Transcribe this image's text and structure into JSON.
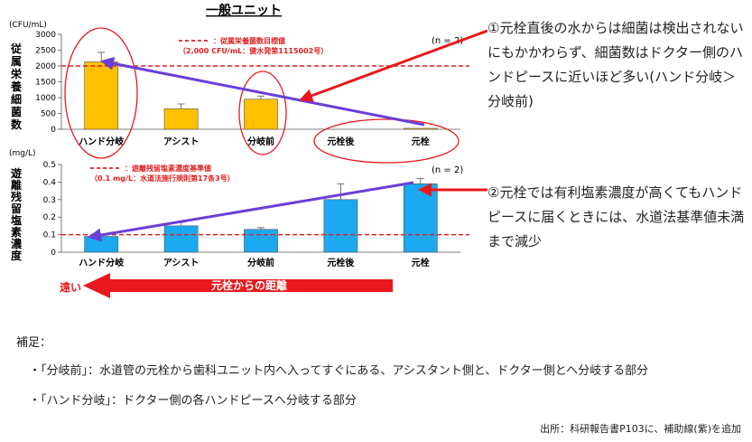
{
  "chart_data": [
    {
      "type": "bar",
      "title": "一般ユニット",
      "unit_label": "(CFU/mL)",
      "ylabel": "従属栄養細菌数",
      "n_label": "(n = 2)",
      "categories": [
        "ハンド分岐",
        "アシスト",
        "分岐前",
        "元栓後",
        "元栓"
      ],
      "values": [
        2130,
        650,
        950,
        0,
        30
      ],
      "errors": [
        300,
        150,
        100,
        0,
        0
      ],
      "ylim": [
        0,
        3000
      ],
      "yticks": [
        "0",
        "500",
        "1000",
        "1500",
        "2000",
        "2500",
        "3000"
      ],
      "bar_color": "#FFC000",
      "threshold": {
        "value": 2000,
        "color": "#E02020",
        "legend_line1": "：従属栄養菌数目標値",
        "legend_line2": "（2,000 CFU/mL：健水発第1115002号）"
      }
    },
    {
      "type": "bar",
      "unit_label": "(mg/L)",
      "ylabel": "遊離残留塩素濃度",
      "n_label": "(n = 2)",
      "categories": [
        "ハンド分岐",
        "アシスト",
        "分岐前",
        "元栓後",
        "元栓"
      ],
      "values": [
        0.09,
        0.15,
        0.13,
        0.3,
        0.39
      ],
      "errors": [
        0.0,
        0.02,
        0.01,
        0.09,
        0.03
      ],
      "ylim": [
        0,
        0.5
      ],
      "yticks": [
        "0",
        "0.1",
        "0.2",
        "0.3",
        "0.4",
        "0.5"
      ],
      "bar_color": "#1AA9F0",
      "threshold": {
        "value": 0.1,
        "color": "#E02020",
        "legend_line1": "：遊離残留塩素濃度基準値",
        "legend_line2": "（0.1 mg/L：水道法施行規則第17条3号）"
      }
    }
  ],
  "distance_arrow": {
    "far_label": "遠い",
    "label": "元栓からの距離",
    "color": "#E8181C"
  },
  "annotations": {
    "note1": "①元栓直後の水からは細菌は検出されないにもかかわらず、細菌数はドクター側のハンドピースに近いほど多い(ハンド分岐＞分岐前)",
    "note2": "②元栓では有利塩素濃度が高くてもハンドピースに届くときには、水道法基準値未満まで減少",
    "arrow_color": "#E8181C",
    "guide_color": "#6A3FD8"
  },
  "supplement": {
    "title": "補足：",
    "items": [
      "・「分岐前」：水道管の元栓から歯科ユニット内へ入ってすぐにある、アシスタント側と、ドクター側とへ分岐する部分",
      "・「ハンド分岐」：ドクター側の各ハンドピースへ分岐する部分"
    ]
  },
  "source": "出所：科研報告書P103に、補助線(紫)を追加"
}
